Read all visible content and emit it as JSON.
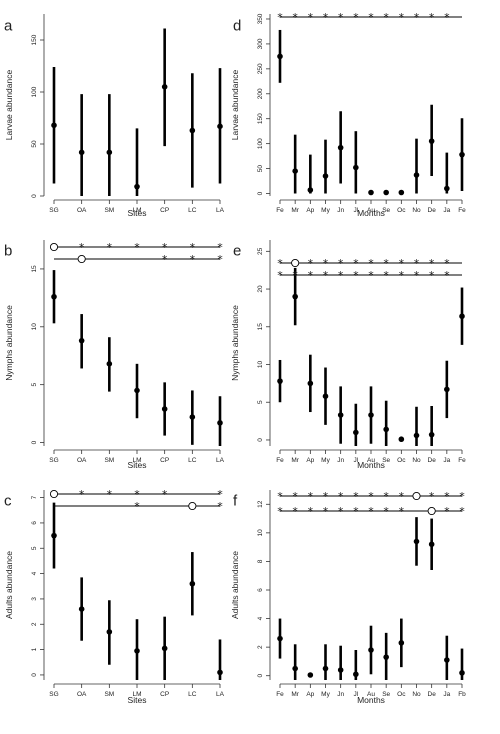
{
  "chart_data": [
    {
      "id": "a",
      "letter": "a",
      "type": "scatter",
      "xlabel": "Sites",
      "ylabel": "Larvae abundance",
      "categories": [
        "SG",
        "OA",
        "SM",
        "LM",
        "CP",
        "LC",
        "LA"
      ],
      "values": [
        68,
        42,
        42,
        9,
        105,
        63,
        67
      ],
      "lower": [
        12,
        0,
        0,
        0,
        48,
        8,
        12
      ],
      "upper": [
        124,
        98,
        98,
        65,
        161,
        118,
        123
      ],
      "ylim": [
        0,
        175
      ],
      "yticks": [
        0,
        50,
        100,
        150
      ],
      "significance": []
    },
    {
      "id": "b",
      "letter": "b",
      "type": "scatter",
      "xlabel": "Sites",
      "ylabel": "Nymphs abundance",
      "categories": [
        "SG",
        "OA",
        "SM",
        "LM",
        "CP",
        "LC",
        "LA"
      ],
      "values": [
        12.6,
        8.8,
        6.8,
        4.5,
        2.9,
        2.2,
        1.7
      ],
      "lower": [
        10.3,
        6.4,
        4.4,
        2.1,
        0.6,
        -0.2,
        -0.7
      ],
      "upper": [
        14.9,
        11.1,
        9.1,
        6.8,
        5.2,
        4.5,
        4.0
      ],
      "ylim": [
        -0.3,
        17.5
      ],
      "yticks": [
        0,
        5,
        10,
        15
      ],
      "significance": [
        {
          "ref": "SG",
          "start": "SG",
          "end": "LA",
          "marks": [
            "OA",
            "SM",
            "LM",
            "CP",
            "LC",
            "LA"
          ],
          "symbol": "*"
        },
        {
          "ref": "OA",
          "start": "SG",
          "end": "LA",
          "marks": [
            "CP",
            "LC",
            "LA"
          ],
          "symbol": "*"
        }
      ]
    },
    {
      "id": "c",
      "letter": "c",
      "type": "scatter",
      "xlabel": "Sites",
      "ylabel": "Adults abundance",
      "categories": [
        "SG",
        "OA",
        "SM",
        "LM",
        "CP",
        "LC",
        "LA"
      ],
      "values": [
        5.5,
        2.6,
        1.7,
        0.95,
        1.05,
        3.6,
        0.1
      ],
      "lower": [
        4.2,
        1.35,
        0.4,
        -0.3,
        -0.2,
        2.35,
        -1.2
      ],
      "upper": [
        6.8,
        3.85,
        2.95,
        2.2,
        2.3,
        4.85,
        1.4
      ],
      "ylim": [
        -0.2,
        7.3
      ],
      "yticks": [
        0,
        1,
        2,
        3,
        4,
        5,
        6,
        7
      ],
      "significance": [
        {
          "ref": "SG",
          "start": "SG",
          "end": "LA",
          "marks": [
            "OA",
            "SM",
            "LM",
            "CP",
            "LA"
          ],
          "symbol": "*"
        },
        {
          "ref": "LC",
          "start": "SG",
          "end": "LA",
          "marks": [
            "LM",
            "LA"
          ],
          "symbol": "*"
        }
      ]
    },
    {
      "id": "d",
      "letter": "d",
      "type": "scatter",
      "xlabel": "Months",
      "ylabel": "Larvae abundance",
      "categories": [
        "Fe",
        "Mr",
        "Ap",
        "My",
        "Jn",
        "Jl",
        "Au",
        "Se",
        "Oc",
        "No",
        "De",
        "Ja",
        "Fe"
      ],
      "values": [
        275,
        45,
        7,
        35,
        92,
        52,
        2,
        2,
        2,
        37,
        105,
        10,
        78
      ],
      "lower": [
        222,
        0,
        0,
        0,
        20,
        0,
        2,
        2,
        2,
        0,
        35,
        0,
        5
      ],
      "upper": [
        328,
        118,
        78,
        108,
        165,
        125,
        2,
        2,
        2,
        110,
        178,
        82,
        151
      ],
      "ylim": [
        -5,
        360
      ],
      "yticks": [
        0,
        50,
        100,
        150,
        200,
        250,
        300,
        350
      ],
      "significance": [
        {
          "ref": "Fe",
          "start": "Fe",
          "end": "Fe",
          "marks": [
            "Mr",
            "Ap",
            "My",
            "Jn",
            "Jl",
            "Au",
            "Se",
            "Oc",
            "No",
            "De",
            "Ja",
            "Fe"
          ],
          "symbol": "*"
        }
      ]
    },
    {
      "id": "e",
      "letter": "e",
      "type": "scatter",
      "xlabel": "Months",
      "ylabel": "Nymphs abundance",
      "categories": [
        "Fe",
        "Mr",
        "Ap",
        "My",
        "Jn",
        "Jl",
        "Au",
        "Se",
        "Oc",
        "No",
        "De",
        "Ja",
        "Fe"
      ],
      "values": [
        7.8,
        19,
        7.5,
        5.8,
        3.3,
        1.0,
        3.3,
        1.4,
        0.1,
        0.6,
        0.7,
        6.7,
        16.4
      ],
      "lower": [
        5.0,
        15.2,
        3.7,
        2.0,
        -0.5,
        -2.8,
        -0.5,
        -2.4,
        0.1,
        -3.2,
        -3.1,
        2.9,
        12.6
      ],
      "upper": [
        10.6,
        22.8,
        11.3,
        9.6,
        7.1,
        4.8,
        7.1,
        5.2,
        0.1,
        4.4,
        4.5,
        10.5,
        20.2
      ],
      "ylim": [
        -0.8,
        26.5
      ],
      "yticks": [
        0,
        5,
        10,
        15,
        20,
        25
      ],
      "significance": [
        {
          "ref": "Mr",
          "start": "Fe",
          "end": "Fe",
          "marks": [
            "Fe",
            "Ap",
            "My",
            "Jn",
            "Jl",
            "Au",
            "Se",
            "Oc",
            "No",
            "De",
            "Ja"
          ],
          "symbol": "*"
        },
        {
          "ref": "Fe",
          "start": "Fe",
          "end": "Fe",
          "marks": [
            "Fe",
            "Mr",
            "Ap",
            "My",
            "Jn",
            "Jl",
            "Au",
            "Se",
            "Oc",
            "No",
            "De",
            "Ja"
          ],
          "symbol": "*"
        }
      ]
    },
    {
      "id": "f",
      "letter": "f",
      "type": "scatter",
      "xlabel": "Months",
      "ylabel": "Adults abundance",
      "categories": [
        "Fe",
        "Mr",
        "Ap",
        "My",
        "Jn",
        "Jl",
        "Au",
        "Se",
        "Oc",
        "No",
        "De",
        "Ja",
        "Fb"
      ],
      "values": [
        2.6,
        0.5,
        0.05,
        0.5,
        0.4,
        0.1,
        1.8,
        1.3,
        2.3,
        9.4,
        9.2,
        1.1,
        0.2
      ],
      "lower": [
        1.2,
        -1.2,
        0.05,
        -1.2,
        -1.3,
        -1.6,
        0.1,
        -0.4,
        0.6,
        7.7,
        7.4,
        -0.6,
        -1.5
      ],
      "upper": [
        4.0,
        2.2,
        0.05,
        2.2,
        2.1,
        1.8,
        3.5,
        3.0,
        4.0,
        11.1,
        11.0,
        2.8,
        1.9
      ],
      "ylim": [
        -0.3,
        13
      ],
      "yticks": [
        0,
        2,
        4,
        6,
        8,
        10,
        12
      ],
      "significance": [
        {
          "ref": "No",
          "start": "Fe",
          "end": "Fb",
          "marks": [
            "Fe",
            "Mr",
            "Ap",
            "My",
            "Jn",
            "Jl",
            "Au",
            "Se",
            "Oc",
            "De",
            "Ja",
            "Fb"
          ],
          "symbol": "*"
        },
        {
          "ref": "De",
          "start": "Fe",
          "end": "Fb",
          "marks": [
            "Fe",
            "Mr",
            "Ap",
            "My",
            "Jn",
            "Jl",
            "Au",
            "Se",
            "Oc",
            "Ja",
            "Fb"
          ],
          "symbol": "*"
        }
      ]
    }
  ]
}
